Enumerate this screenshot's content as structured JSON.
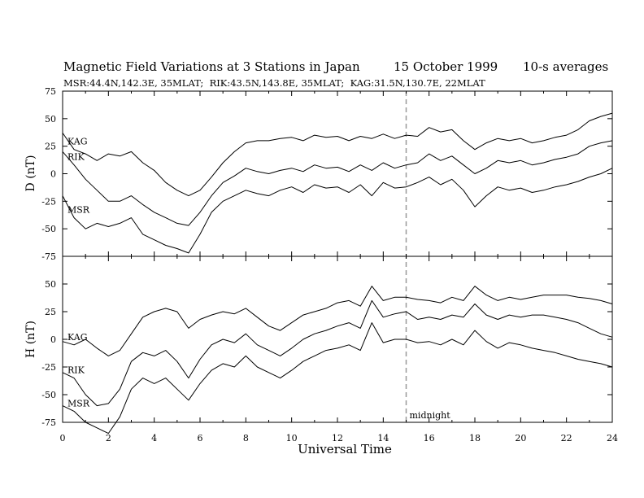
{
  "header": {
    "title": "Magnetic Field Variations at 3 Stations in Japan",
    "date": "15 October 1999",
    "averaging": "10-s averages",
    "stations_line": "MSR:44.4N,142.3E, 35MLAT;  RIK:43.5N,143.8E, 35MLAT;  KAG:31.5N,130.7E, 22MLAT"
  },
  "chart_data": [
    {
      "type": "line",
      "panel": "top",
      "ylabel": "D (nT)",
      "ylim": [
        -75,
        75
      ],
      "yticks": [
        75,
        50,
        25,
        0,
        -25,
        -50,
        -75
      ],
      "series": [
        {
          "name": "KAG",
          "x": [
            0,
            0.5,
            1,
            1.5,
            2,
            2.5,
            3,
            3.5,
            4,
            4.5,
            5,
            5.5,
            6,
            6.5,
            7,
            7.5,
            8,
            8.5,
            9,
            9.5,
            10,
            10.5,
            11,
            11.5,
            12,
            12.5,
            13,
            13.5,
            14,
            14.5,
            15,
            15.5,
            16,
            16.5,
            17,
            17.5,
            18,
            18.5,
            19,
            19.5,
            20,
            20.5,
            21,
            21.5,
            22,
            22.5,
            23,
            23.5,
            24
          ],
          "values": [
            37,
            22,
            18,
            12,
            18,
            16,
            20,
            10,
            3,
            -8,
            -15,
            -20,
            -15,
            -3,
            10,
            20,
            28,
            30,
            30,
            32,
            33,
            30,
            35,
            33,
            34,
            30,
            34,
            32,
            36,
            32,
            35,
            34,
            42,
            38,
            40,
            30,
            22,
            28,
            32,
            30,
            32,
            28,
            30,
            33,
            35,
            40,
            48,
            52,
            55
          ]
        },
        {
          "name": "RIK",
          "x": [
            0,
            0.5,
            1,
            1.5,
            2,
            2.5,
            3,
            3.5,
            4,
            4.5,
            5,
            5.5,
            6,
            6.5,
            7,
            7.5,
            8,
            8.5,
            9,
            9.5,
            10,
            10.5,
            11,
            11.5,
            12,
            12.5,
            13,
            13.5,
            14,
            14.5,
            15,
            15.5,
            16,
            16.5,
            17,
            17.5,
            18,
            18.5,
            19,
            19.5,
            20,
            20.5,
            21,
            21.5,
            22,
            22.5,
            23,
            23.5,
            24
          ],
          "values": [
            20,
            8,
            -5,
            -15,
            -25,
            -25,
            -20,
            -28,
            -35,
            -40,
            -45,
            -47,
            -35,
            -20,
            -8,
            -2,
            5,
            2,
            0,
            3,
            5,
            2,
            8,
            5,
            6,
            2,
            8,
            3,
            10,
            5,
            8,
            10,
            18,
            12,
            16,
            8,
            0,
            5,
            12,
            10,
            12,
            8,
            10,
            13,
            15,
            18,
            25,
            28,
            30
          ]
        },
        {
          "name": "MSR",
          "x": [
            0,
            0.5,
            1,
            1.5,
            2,
            2.5,
            3,
            3.5,
            4,
            4.5,
            5,
            5.5,
            6,
            6.5,
            7,
            7.5,
            8,
            8.5,
            9,
            9.5,
            10,
            10.5,
            11,
            11.5,
            12,
            12.5,
            13,
            13.5,
            14,
            14.5,
            15,
            15.5,
            16,
            16.5,
            17,
            17.5,
            18,
            18.5,
            19,
            19.5,
            20,
            20.5,
            21,
            21.5,
            22,
            22.5,
            23,
            23.5,
            24
          ],
          "values": [
            -20,
            -40,
            -50,
            -45,
            -48,
            -45,
            -40,
            -55,
            -60,
            -65,
            -68,
            -72,
            -55,
            -35,
            -25,
            -20,
            -15,
            -18,
            -20,
            -15,
            -12,
            -17,
            -10,
            -13,
            -12,
            -17,
            -10,
            -20,
            -8,
            -13,
            -12,
            -8,
            -3,
            -10,
            -5,
            -15,
            -30,
            -20,
            -12,
            -15,
            -13,
            -17,
            -15,
            -12,
            -10,
            -7,
            -3,
            0,
            5
          ]
        }
      ]
    },
    {
      "type": "line",
      "panel": "bottom",
      "ylabel": "H (nT)",
      "ylim": [
        -75,
        75
      ],
      "yticks": [
        50,
        25,
        0,
        -25,
        -50,
        -75
      ],
      "xlabel": "Universal Time",
      "xlim": [
        0,
        24
      ],
      "xticks": [
        0,
        2,
        4,
        6,
        8,
        10,
        12,
        14,
        16,
        18,
        20,
        22,
        24
      ],
      "annotation": {
        "text": "midnight",
        "x": 15
      },
      "series": [
        {
          "name": "KAG",
          "x": [
            0,
            0.5,
            1,
            1.5,
            2,
            2.5,
            3,
            3.5,
            4,
            4.5,
            5,
            5.5,
            6,
            6.5,
            7,
            7.5,
            8,
            8.5,
            9,
            9.5,
            10,
            10.5,
            11,
            11.5,
            12,
            12.5,
            13,
            13.5,
            14,
            14.5,
            15,
            15.5,
            16,
            16.5,
            17,
            17.5,
            18,
            18.5,
            19,
            19.5,
            20,
            20.5,
            21,
            21.5,
            22,
            22.5,
            23,
            23.5,
            24
          ],
          "values": [
            -2,
            -5,
            0,
            -8,
            -15,
            -10,
            5,
            20,
            25,
            28,
            25,
            10,
            18,
            22,
            25,
            23,
            28,
            20,
            12,
            8,
            15,
            22,
            25,
            28,
            33,
            35,
            30,
            48,
            35,
            38,
            38,
            36,
            35,
            33,
            38,
            35,
            48,
            40,
            35,
            38,
            36,
            38,
            40,
            40,
            40,
            38,
            37,
            35,
            32
          ]
        },
        {
          "name": "RIK",
          "x": [
            0,
            0.5,
            1,
            1.5,
            2,
            2.5,
            3,
            3.5,
            4,
            4.5,
            5,
            5.5,
            6,
            6.5,
            7,
            7.5,
            8,
            8.5,
            9,
            9.5,
            10,
            10.5,
            11,
            11.5,
            12,
            12.5,
            13,
            13.5,
            14,
            14.5,
            15,
            15.5,
            16,
            16.5,
            17,
            17.5,
            18,
            18.5,
            19,
            19.5,
            20,
            20.5,
            21,
            21.5,
            22,
            22.5,
            23,
            23.5,
            24
          ],
          "values": [
            -30,
            -35,
            -50,
            -60,
            -58,
            -45,
            -20,
            -12,
            -15,
            -10,
            -20,
            -35,
            -18,
            -5,
            0,
            -3,
            5,
            -5,
            -10,
            -15,
            -8,
            0,
            5,
            8,
            12,
            15,
            10,
            35,
            20,
            23,
            25,
            18,
            20,
            18,
            22,
            20,
            32,
            22,
            18,
            22,
            20,
            22,
            22,
            20,
            18,
            15,
            10,
            5,
            2
          ]
        },
        {
          "name": "MSR",
          "x": [
            0,
            0.5,
            1,
            1.5,
            2,
            2.5,
            3,
            3.5,
            4,
            4.5,
            5,
            5.5,
            6,
            6.5,
            7,
            7.5,
            8,
            8.5,
            9,
            9.5,
            10,
            10.5,
            11,
            11.5,
            12,
            12.5,
            13,
            13.5,
            14,
            14.5,
            15,
            15.5,
            16,
            16.5,
            17,
            17.5,
            18,
            18.5,
            19,
            19.5,
            20,
            20.5,
            21,
            21.5,
            22,
            22.5,
            23,
            23.5,
            24
          ],
          "values": [
            -60,
            -65,
            -75,
            -80,
            -85,
            -70,
            -45,
            -35,
            -40,
            -35,
            -45,
            -55,
            -40,
            -28,
            -22,
            -25,
            -15,
            -25,
            -30,
            -35,
            -28,
            -20,
            -15,
            -10,
            -8,
            -5,
            -10,
            15,
            -3,
            0,
            0,
            -3,
            -2,
            -5,
            0,
            -5,
            8,
            -2,
            -8,
            -3,
            -5,
            -8,
            -10,
            -12,
            -15,
            -18,
            -20,
            -22,
            -25
          ]
        }
      ]
    }
  ]
}
